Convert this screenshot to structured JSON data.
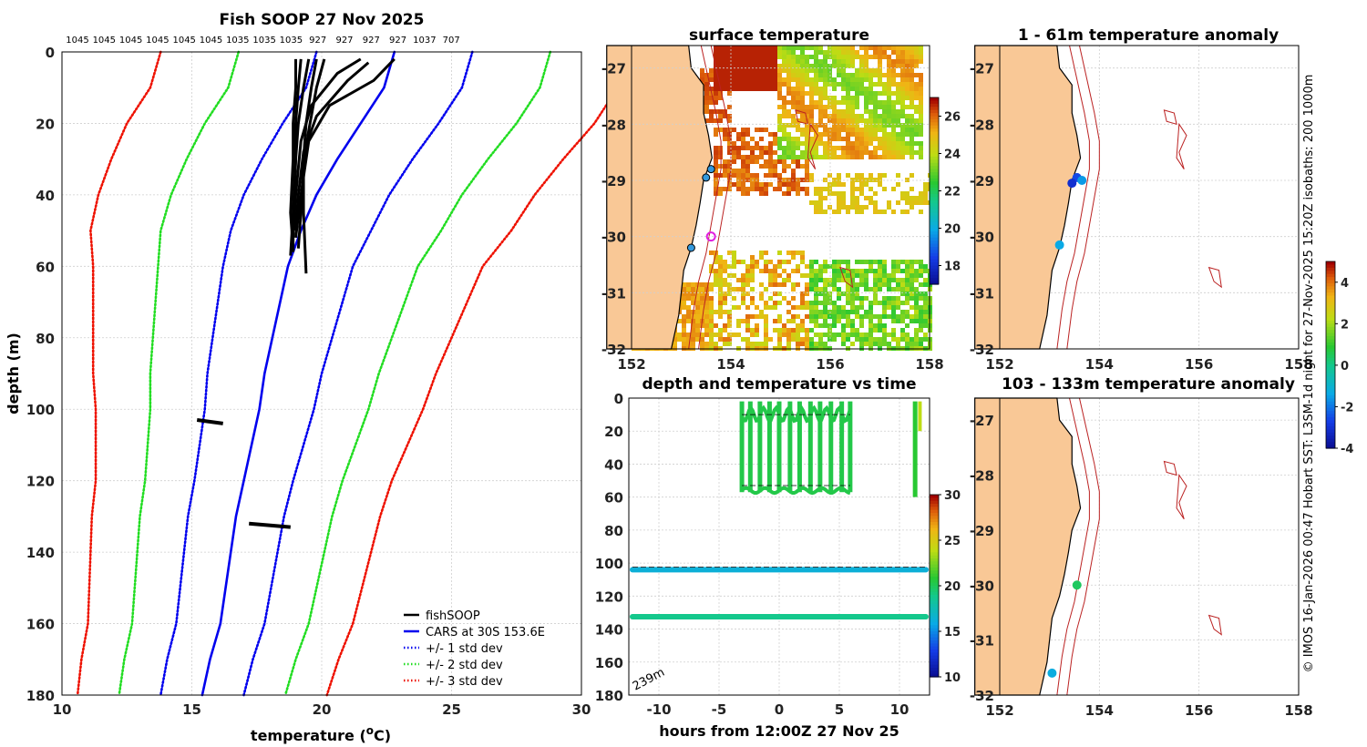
{
  "credit": "© IMOS 16-Jan-2026 00:47 Hobart SST: L3SM-1d night for 27-Nov-2025 15:20Z isobaths: 200  1000m",
  "colors": {
    "land": "#f9c896",
    "cars": "#0000ee",
    "std1": "#0000ee",
    "std2": "#22dd22",
    "std3": "#ee1100",
    "profile": "#000000"
  },
  "chart_data": [
    {
      "id": "profile",
      "type": "line",
      "title": "Fish SOOP 27 Nov 2025",
      "xlabel": "temperature (°C)",
      "xlabel_main": "temperature (",
      "xlabel_sup": "o",
      "xlabel_tail": "C)",
      "ylabel": "depth (m)",
      "xlim": [
        10,
        30
      ],
      "ylim": [
        0,
        180
      ],
      "xticks": [
        10,
        15,
        20,
        25,
        30
      ],
      "yticks": [
        0,
        20,
        40,
        60,
        80,
        100,
        120,
        140,
        160,
        180
      ],
      "top_labels": [
        "1045",
        "1045",
        "1045",
        "1045",
        "1045",
        "1045",
        "1035",
        "1035",
        "1035",
        "927",
        "927",
        "927",
        "927",
        "1037",
        "707"
      ],
      "legend": [
        {
          "label": "fishSOOP",
          "style": "solid-black"
        },
        {
          "label": "CARS at 30S 153.6E",
          "style": "solid-blue"
        },
        {
          "label": "+/- 1 std dev",
          "style": "dotted-blue"
        },
        {
          "label": "+/- 2 std dev",
          "style": "dotted-green"
        },
        {
          "label": "+/- 3 std dev",
          "style": "dotted-red"
        }
      ],
      "cars": {
        "depth": [
          0,
          10,
          20,
          30,
          40,
          50,
          60,
          70,
          80,
          90,
          100,
          110,
          120,
          130,
          140,
          150,
          160,
          170,
          180
        ],
        "mean": [
          22.8,
          22.4,
          21.5,
          20.6,
          19.8,
          19.2,
          18.7,
          18.4,
          18.1,
          17.8,
          17.6,
          17.3,
          17.0,
          16.7,
          16.5,
          16.3,
          16.1,
          15.7,
          15.4
        ],
        "std": [
          3.0,
          3.0,
          3.0,
          2.9,
          2.8,
          2.7,
          2.5,
          2.4,
          2.3,
          2.2,
          2.1,
          2.0,
          1.9,
          1.85,
          1.8,
          1.75,
          1.7,
          1.65,
          1.6
        ]
      },
      "fishsoop": {
        "profiles": [
          {
            "t": [
              19.0,
              19.0,
              18.9,
              18.9,
              18.8,
              18.9
            ],
            "d": [
              2,
              10,
              20,
              30,
              45,
              55
            ]
          },
          {
            "t": [
              19.2,
              19.1,
              19.0,
              19.0,
              18.9,
              18.9
            ],
            "d": [
              2,
              10,
              20,
              30,
              45,
              56
            ]
          },
          {
            "t": [
              19.5,
              19.3,
              19.1,
              19.0,
              18.9,
              18.8
            ],
            "d": [
              2,
              10,
              20,
              30,
              45,
              57
            ]
          },
          {
            "t": [
              19.8,
              19.6,
              19.4,
              19.3,
              19.3,
              19.4
            ],
            "d": [
              2,
              10,
              20,
              30,
              45,
              62
            ]
          },
          {
            "t": [
              20.1,
              19.8,
              19.5,
              19.3,
              19.2,
              19.1
            ],
            "d": [
              2,
              10,
              22,
              32,
              45,
              55
            ]
          },
          {
            "t": [
              21.5,
              20.6,
              19.6,
              19.2,
              19.0,
              18.9
            ],
            "d": [
              2,
              6,
              15,
              25,
              40,
              52
            ]
          },
          {
            "t": [
              21.8,
              21.0,
              19.8,
              19.3,
              19.1,
              19.0
            ],
            "d": [
              3,
              8,
              18,
              28,
              40,
              50
            ]
          },
          {
            "t": [
              22.8,
              22.0,
              20.3,
              19.5,
              19.2,
              19.0
            ],
            "d": [
              2,
              8,
              15,
              25,
              40,
              52
            ]
          }
        ],
        "bottom_clusters": [
          {
            "t": [
              15.2,
              16.2
            ],
            "d": [
              103,
              104
            ]
          },
          {
            "t": [
              17.2,
              18.8
            ],
            "d": [
              132,
              133
            ]
          }
        ]
      }
    },
    {
      "id": "sst",
      "type": "heatmap",
      "title": "surface temperature",
      "xlim": [
        152,
        158
      ],
      "ylim": [
        -32,
        -26.6
      ],
      "xticks": [
        152,
        154,
        156,
        158
      ],
      "yticks": [
        -27,
        -28,
        -29,
        -30,
        -31,
        -32
      ],
      "colorbar": {
        "min": 17,
        "max": 27,
        "ticks": [
          18,
          20,
          22,
          24,
          26
        ]
      },
      "stations": [
        {
          "lon": 153.6,
          "lat": -28.8
        },
        {
          "lon": 153.5,
          "lat": -28.95
        },
        {
          "lon": 153.2,
          "lat": -30.2
        },
        {
          "lon": 153.6,
          "lat": -30.0,
          "highlight": true
        }
      ]
    },
    {
      "id": "time",
      "type": "scatter",
      "title": "depth and temperature vs time",
      "xlabel": "hours from 12:00Z 27 Nov 25",
      "ylabel": "",
      "xlim": [
        -12.5,
        12.5
      ],
      "ylim": [
        0,
        180
      ],
      "xticks": [
        -10,
        -5,
        0,
        5,
        10
      ],
      "yticks": [
        0,
        20,
        40,
        60,
        80,
        100,
        120,
        140,
        160,
        180
      ],
      "annotation": "239m",
      "colorbar": {
        "min": 10,
        "max": 30,
        "ticks": [
          10,
          15,
          20,
          25,
          30
        ]
      },
      "series": [
        {
          "name": "bottom 103m",
          "depth": 104,
          "temp": 16.5
        },
        {
          "name": "bottom 132m",
          "depth": 132.5,
          "temp": 19.0
        },
        {
          "name": "profiles",
          "temp": 20.5
        }
      ]
    },
    {
      "id": "anom1",
      "type": "scatter",
      "title": "1 - 61m temperature anomaly",
      "xlim": [
        152,
        158
      ],
      "ylim": [
        -32,
        -26.6
      ],
      "xticks": [
        152,
        154,
        156,
        158
      ],
      "yticks": [
        -27,
        -28,
        -29,
        -30,
        -31,
        -32
      ],
      "colorbar": {
        "min": -4,
        "max": 5,
        "ticks": [
          -4,
          -2,
          0,
          2,
          4
        ]
      },
      "points": [
        {
          "lon": 153.55,
          "lat": -28.95,
          "anom": -2.5
        },
        {
          "lon": 153.65,
          "lat": -29.0,
          "anom": -1.5
        },
        {
          "lon": 153.45,
          "lat": -29.05,
          "anom": -3.0
        },
        {
          "lon": 153.2,
          "lat": -30.15,
          "anom": -1.3
        }
      ]
    },
    {
      "id": "anom2",
      "type": "scatter",
      "title": "103 - 133m temperature anomaly",
      "xlim": [
        152,
        158
      ],
      "ylim": [
        -32,
        -26.6
      ],
      "xticks": [
        152,
        154,
        156,
        158
      ],
      "yticks": [
        -27,
        -28,
        -29,
        -30,
        -31,
        -32
      ],
      "points": [
        {
          "lon": 153.55,
          "lat": -30.0,
          "anom": 0.5
        },
        {
          "lon": 153.05,
          "lat": -31.6,
          "anom": -1.2
        }
      ]
    }
  ]
}
